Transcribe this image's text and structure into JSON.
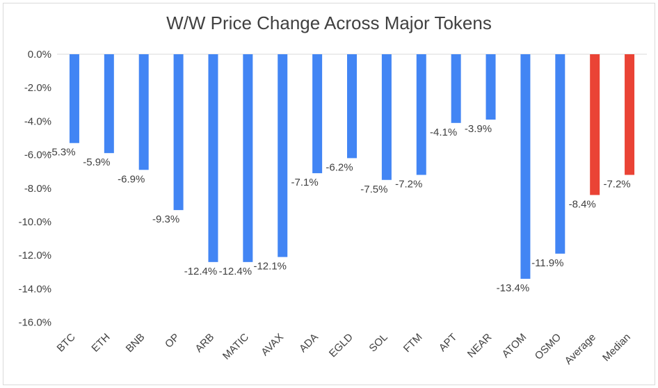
{
  "chart_data": {
    "type": "bar",
    "title": "W/W Price Change Across Major Tokens",
    "xlabel": "",
    "ylabel": "",
    "ylim": [
      -16,
      0
    ],
    "yticks": [
      0,
      -2,
      -4,
      -6,
      -8,
      -10,
      -12,
      -14,
      -16
    ],
    "ytick_labels": [
      "0.0%",
      "-2.0%",
      "-4.0%",
      "-6.0%",
      "-8.0%",
      "-10.0%",
      "-12.0%",
      "-14.0%",
      "-16.0%"
    ],
    "grid": false,
    "legend": "none",
    "categories": [
      "BTC",
      "ETH",
      "BNB",
      "OP",
      "ARB",
      "MATIC",
      "AVAX",
      "ADA",
      "EGLD",
      "SOL",
      "FTM",
      "APT",
      "NEAR",
      "ATOM",
      "OSMO",
      "Average",
      "Median"
    ],
    "values": [
      -5.3,
      -5.9,
      -6.9,
      -9.3,
      -12.4,
      -12.4,
      -12.1,
      -7.1,
      -6.2,
      -7.5,
      -7.2,
      -4.1,
      -3.9,
      -13.4,
      -11.9,
      -8.4,
      -7.2
    ],
    "data_labels": [
      "-5.3%",
      "-5.9%",
      "-6.9%",
      "-9.3%",
      "-12.4%",
      "-12.4%",
      "-12.1%",
      "-7.1%",
      "-6.2%",
      "-7.5%",
      "-7.2%",
      "-4.1%",
      "-3.9%",
      "-13.4%",
      "-11.9%",
      "-8.4%",
      "-7.2%"
    ],
    "colors": {
      "token": "#4285F4",
      "summary": "#EA4335",
      "axis": "#d9d9d9",
      "text": "#404040"
    },
    "summary_categories": [
      "Average",
      "Median"
    ]
  }
}
